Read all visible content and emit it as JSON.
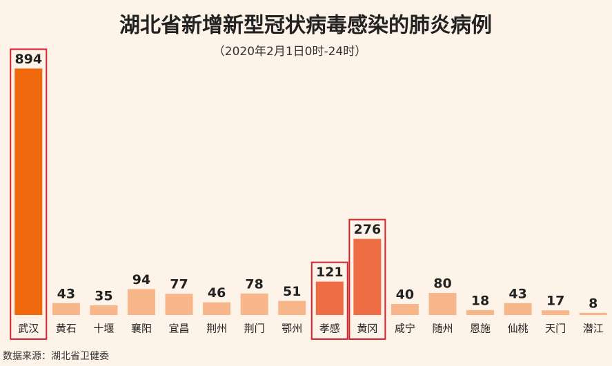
{
  "chart_data": {
    "type": "bar",
    "title": "湖北省新增新型冠状病毒感染的肺炎病例",
    "subtitle": "（2020年2月1日0时-24时）",
    "categories": [
      "武汉",
      "黄石",
      "十堰",
      "襄阳",
      "宜昌",
      "荆州",
      "荆门",
      "鄂州",
      "孝感",
      "黄冈",
      "咸宁",
      "随州",
      "恩施",
      "仙桃",
      "天门",
      "潜江"
    ],
    "values": [
      894,
      43,
      35,
      94,
      77,
      46,
      78,
      51,
      121,
      276,
      40,
      80,
      18,
      43,
      17,
      8
    ],
    "colors": [
      "#f0680c",
      "#f7b78a",
      "#f7b78a",
      "#f7b78a",
      "#f7b78a",
      "#f7b78a",
      "#f7b78a",
      "#f7b78a",
      "#ee6d45",
      "#ee6d45",
      "#f7b78a",
      "#f7b78a",
      "#f7b78a",
      "#f7b78a",
      "#f7b78a",
      "#f7b78a"
    ],
    "highlight": [
      0,
      8,
      9
    ],
    "ylim": [
      0,
      1000
    ],
    "source": "数据来源：湖北省卫健委"
  }
}
